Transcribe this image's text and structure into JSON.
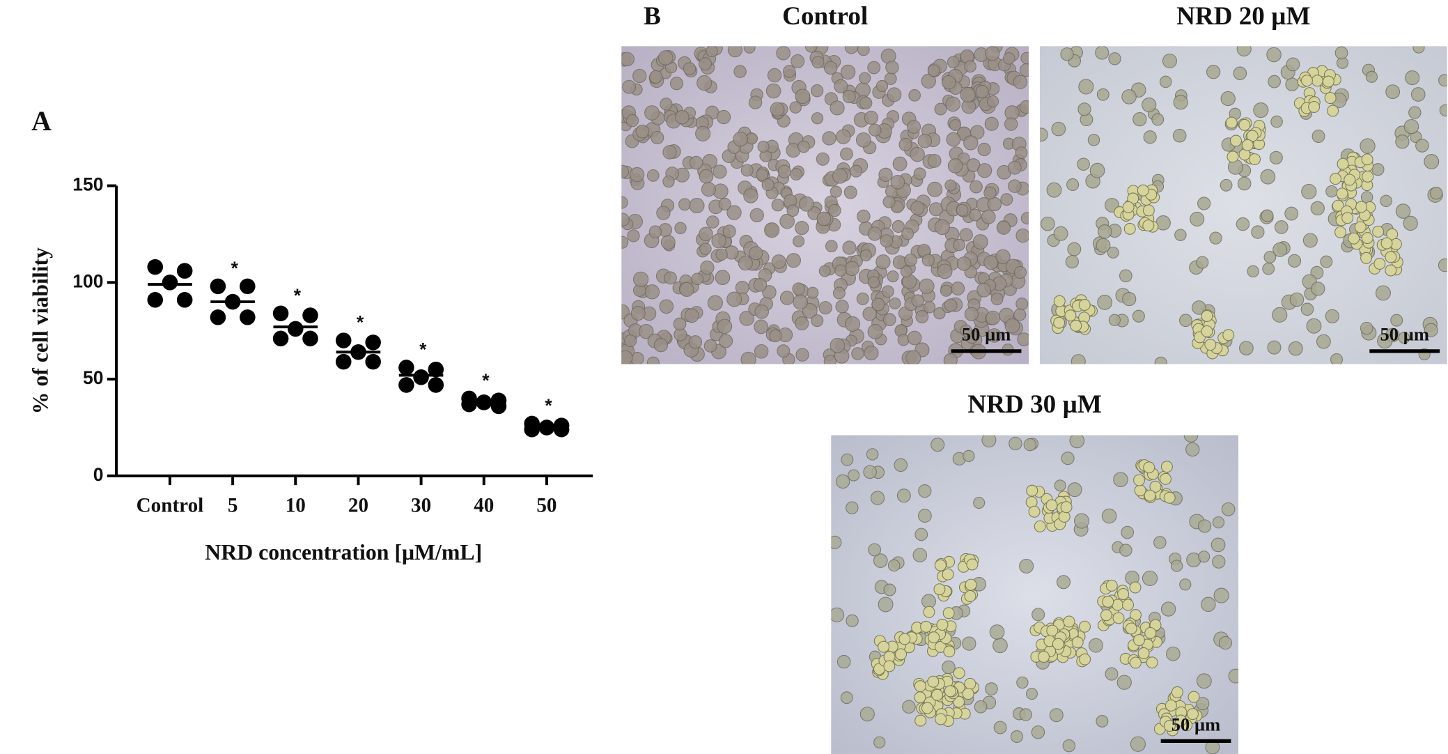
{
  "chart_data": {
    "type": "dot",
    "panel_label": "A",
    "y_label": "% of cell viability",
    "x_label": "NRD concentration [μM/mL]",
    "categories": [
      "Control",
      "5",
      "10",
      "20",
      "30",
      "40",
      "50"
    ],
    "points": [
      [
        108,
        106,
        100,
        91,
        91
      ],
      [
        98,
        98,
        90,
        82,
        82
      ],
      [
        84,
        83,
        76,
        71,
        71
      ],
      [
        70,
        69,
        64,
        59,
        59
      ],
      [
        56,
        55,
        51,
        47,
        47
      ],
      [
        40,
        39,
        38,
        37,
        36,
        38
      ],
      [
        27,
        26,
        25,
        24,
        24,
        25
      ]
    ],
    "means": [
      99,
      90,
      77,
      64,
      52,
      38,
      25
    ],
    "significance": [
      null,
      "*",
      "*",
      "*",
      "*",
      "*",
      "*"
    ],
    "color": "#000000",
    "ylim": [
      0,
      150
    ],
    "yticks": [
      0,
      50,
      100,
      150
    ]
  },
  "panel_b": {
    "label": "B",
    "images": [
      {
        "title": "Control",
        "scale_bar": "50 µm"
      },
      {
        "title": "NRD 20 µM",
        "scale_bar": "50 µm"
      },
      {
        "title": "NRD 30 µM",
        "scale_bar": "50 µm"
      }
    ]
  }
}
